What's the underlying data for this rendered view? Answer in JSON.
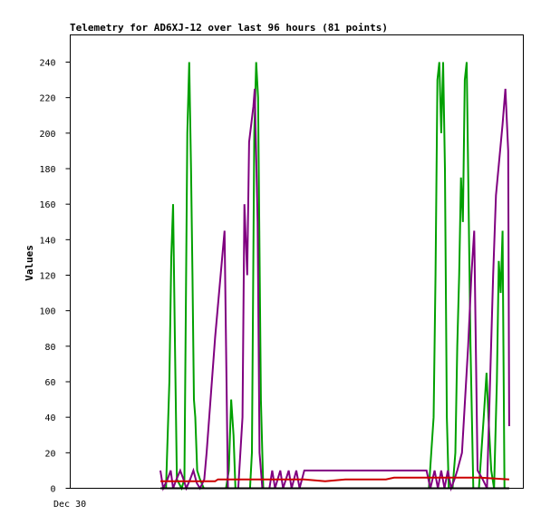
{
  "chart_data": {
    "type": "line",
    "title": "Telemetry for AD6XJ-12 over last 96 hours (81 points)",
    "xlabel": "",
    "ylabel": "Values",
    "x_tick_labels": [
      "Dec 30"
    ],
    "ylim": [
      0,
      240
    ],
    "yticks": [
      0,
      20,
      40,
      60,
      80,
      100,
      120,
      140,
      160,
      180,
      200,
      220,
      240
    ],
    "xlim": [
      0,
      96
    ],
    "grid": false,
    "series": [
      {
        "color": "#00a000",
        "points": [
          [
            19.1,
            0
          ],
          [
            20.3,
            0
          ],
          [
            21.0,
            60
          ],
          [
            21.4,
            130
          ],
          [
            21.8,
            160
          ],
          [
            22.2,
            80
          ],
          [
            22.6,
            5
          ],
          [
            23.6,
            0
          ],
          [
            24.2,
            5
          ],
          [
            24.8,
            200
          ],
          [
            25.2,
            240
          ],
          [
            25.6,
            180
          ],
          [
            25.9,
            120
          ],
          [
            26.2,
            50
          ],
          [
            26.5,
            40
          ],
          [
            26.9,
            10
          ],
          [
            27.5,
            5
          ],
          [
            28.3,
            0
          ],
          [
            29.6,
            0
          ],
          [
            33.0,
            0
          ],
          [
            33.6,
            10
          ],
          [
            34.1,
            50
          ],
          [
            34.6,
            30
          ],
          [
            35.0,
            0
          ],
          [
            38.1,
            0
          ],
          [
            38.5,
            20
          ],
          [
            39.0,
            200
          ],
          [
            39.4,
            240
          ],
          [
            39.8,
            220
          ],
          [
            40.4,
            50
          ],
          [
            40.9,
            0
          ],
          [
            76.0,
            0
          ],
          [
            77.0,
            40
          ],
          [
            77.4,
            120
          ],
          [
            77.8,
            230
          ],
          [
            78.2,
            240
          ],
          [
            78.6,
            200
          ],
          [
            79.0,
            240
          ],
          [
            79.4,
            180
          ],
          [
            79.8,
            40
          ],
          [
            80.2,
            0
          ],
          [
            81.0,
            0
          ],
          [
            81.6,
            20
          ],
          [
            82.0,
            80
          ],
          [
            82.4,
            120
          ],
          [
            82.8,
            175
          ],
          [
            83.2,
            150
          ],
          [
            83.6,
            230
          ],
          [
            84.0,
            240
          ],
          [
            84.4,
            160
          ],
          [
            84.8,
            80
          ],
          [
            85.4,
            0
          ],
          [
            86.6,
            0
          ],
          [
            87.6,
            40
          ],
          [
            88.2,
            65
          ],
          [
            88.6,
            40
          ],
          [
            89.2,
            10
          ],
          [
            89.8,
            0
          ],
          [
            90.4,
            60
          ],
          [
            90.8,
            128
          ],
          [
            91.2,
            110
          ],
          [
            91.6,
            145
          ],
          [
            92.0,
            0
          ]
        ]
      },
      {
        "color": "#800080",
        "points": [
          [
            19.1,
            10
          ],
          [
            19.7,
            0
          ],
          [
            20.6,
            5
          ],
          [
            21.3,
            10
          ],
          [
            21.8,
            0
          ],
          [
            22.5,
            5
          ],
          [
            23.3,
            10
          ],
          [
            24.0,
            5
          ],
          [
            24.6,
            0
          ],
          [
            25.4,
            5
          ],
          [
            26.1,
            10
          ],
          [
            26.8,
            3
          ],
          [
            27.5,
            0
          ],
          [
            28.4,
            5
          ],
          [
            28.9,
            20
          ],
          [
            30.7,
            85
          ],
          [
            32.7,
            145
          ],
          [
            33.4,
            0
          ],
          [
            34.4,
            0
          ],
          [
            35.6,
            0
          ],
          [
            36.5,
            40
          ],
          [
            36.9,
            160
          ],
          [
            37.5,
            120
          ],
          [
            37.9,
            195
          ],
          [
            38.8,
            215
          ],
          [
            39.1,
            225
          ],
          [
            39.7,
            150
          ],
          [
            40.1,
            20
          ],
          [
            40.7,
            0
          ],
          [
            42.2,
            0
          ],
          [
            42.8,
            10
          ],
          [
            43.4,
            0
          ],
          [
            44.5,
            10
          ],
          [
            45.1,
            0
          ],
          [
            46.3,
            10
          ],
          [
            46.9,
            0
          ],
          [
            47.9,
            10
          ],
          [
            48.6,
            0
          ],
          [
            49.6,
            10
          ],
          [
            75.5,
            10
          ],
          [
            76.3,
            0
          ],
          [
            77.2,
            10
          ],
          [
            77.9,
            0
          ],
          [
            78.6,
            10
          ],
          [
            79.3,
            0
          ],
          [
            80.0,
            10
          ],
          [
            80.7,
            0
          ],
          [
            81.4,
            5
          ],
          [
            82.0,
            10
          ],
          [
            83.0,
            20
          ],
          [
            84.3,
            80
          ],
          [
            85.0,
            120
          ],
          [
            85.6,
            145
          ],
          [
            86.3,
            10
          ],
          [
            87.4,
            5
          ],
          [
            88.3,
            0
          ],
          [
            89.6,
            120
          ],
          [
            90.2,
            165
          ],
          [
            91.6,
            205
          ],
          [
            92.2,
            225
          ],
          [
            92.8,
            190
          ],
          [
            93.0,
            35
          ]
        ]
      },
      {
        "color": "#cc0000",
        "points": [
          [
            19.1,
            4
          ],
          [
            30.7,
            4
          ],
          [
            31.3,
            5
          ],
          [
            49.6,
            5
          ],
          [
            54.0,
            4
          ],
          [
            58.3,
            5
          ],
          [
            66.9,
            5
          ],
          [
            68.6,
            6
          ],
          [
            86.9,
            6
          ],
          [
            93.0,
            5
          ]
        ]
      },
      {
        "color": "#000000",
        "points": [
          [
            19.1,
            0
          ],
          [
            93.0,
            0
          ]
        ]
      }
    ]
  }
}
